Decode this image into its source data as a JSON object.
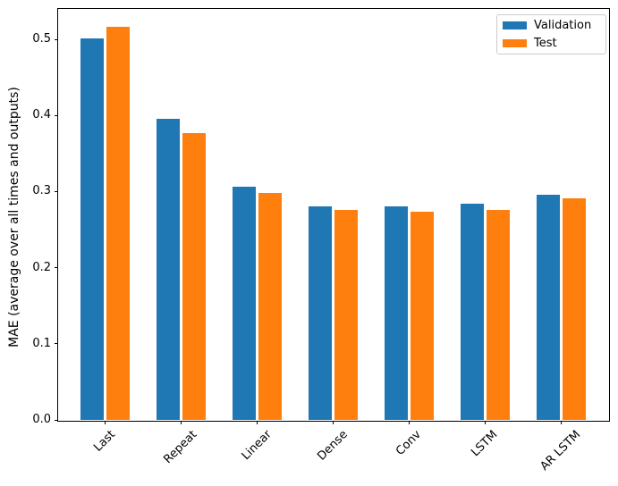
{
  "chart_data": {
    "type": "bar",
    "title": "",
    "categories": [
      "Last",
      "Repeat",
      "Linear",
      "Dense",
      "Conv",
      "LSTM",
      "AR LSTM"
    ],
    "series": [
      {
        "name": "Validation",
        "color": "#1f77b4",
        "values": [
          0.501,
          0.396,
          0.306,
          0.28,
          0.28,
          0.284,
          0.296
        ]
      },
      {
        "name": "Test",
        "color": "#ff7f0e",
        "values": [
          0.516,
          0.377,
          0.298,
          0.276,
          0.274,
          0.276,
          0.291
        ]
      }
    ],
    "xlabel": "",
    "ylabel": "MAE (average over all times and outputs)",
    "ylim": [
      0.0,
      0.54
    ],
    "yticks": [
      0.0,
      0.1,
      0.2,
      0.3,
      0.4,
      0.5
    ],
    "ytick_labels": [
      "0.0",
      "0.1",
      "0.2",
      "0.3",
      "0.4",
      "0.5"
    ],
    "x_tick_rotation": 45,
    "grid": false,
    "legend": {
      "position": "upper right",
      "entries": [
        "Validation",
        "Test"
      ]
    }
  }
}
